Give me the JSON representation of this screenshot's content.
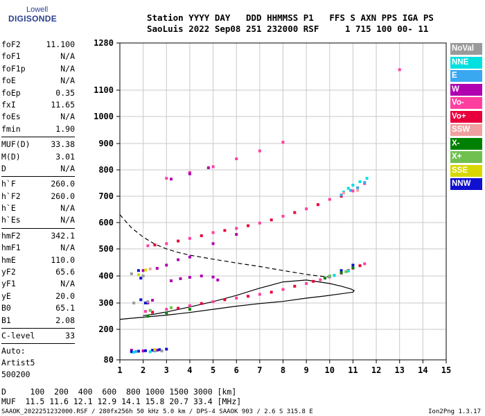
{
  "logo": {
    "line1": "Lowell",
    "line2": "DIGISONDE"
  },
  "header": {
    "line1": "Station YYYY DAY   DDD HHMMSS P1   FFS S AXN PPS IGA PS",
    "line2": "SaoLuis 2022 Sep08 251 232000 RSF     1 715 100 00- 11"
  },
  "params": {
    "group1": [
      {
        "label": "foF2",
        "value": "11.100"
      },
      {
        "label": "foF1",
        "value": "N/A"
      },
      {
        "label": "foF1p",
        "value": "N/A"
      },
      {
        "label": "foE",
        "value": "N/A"
      },
      {
        "label": "foEp",
        "value": "0.35"
      },
      {
        "label": "fxI",
        "value": "11.65"
      },
      {
        "label": "foEs",
        "value": "N/A"
      },
      {
        "label": "fmin",
        "value": "1.90"
      }
    ],
    "group2": [
      {
        "label": "MUF(D)",
        "value": "33.38"
      },
      {
        "label": "M(D)",
        "value": "3.01"
      },
      {
        "label": "D",
        "value": "N/A"
      }
    ],
    "group3": [
      {
        "label": "h`F",
        "value": "260.0"
      },
      {
        "label": "h`F2",
        "value": "260.0"
      },
      {
        "label": "h`E",
        "value": "N/A"
      },
      {
        "label": "h`Es",
        "value": "N/A"
      }
    ],
    "group4": [
      {
        "label": "hmF2",
        "value": "342.1"
      },
      {
        "label": "hmF1",
        "value": "N/A"
      },
      {
        "label": "hmE",
        "value": "110.0"
      },
      {
        "label": "yF2",
        "value": "65.6"
      },
      {
        "label": "yF1",
        "value": "N/A"
      },
      {
        "label": "yE",
        "value": "20.0"
      },
      {
        "label": "B0",
        "value": "65.1"
      },
      {
        "label": "B1",
        "value": "2.08"
      }
    ],
    "clevel": {
      "label": "C-level",
      "value": "33"
    },
    "auto": [
      "Auto:",
      "Artist5",
      "500200"
    ]
  },
  "legend": [
    {
      "label": "NoVal",
      "color": "#9a9a9a"
    },
    {
      "label": "NNE",
      "color": "#00e0e0"
    },
    {
      "label": "E",
      "color": "#3aa8f0"
    },
    {
      "label": "W",
      "color": "#b000b0"
    },
    {
      "label": "Vo-",
      "color": "#ff3fa0"
    },
    {
      "label": "Vo+",
      "color": "#e8003c"
    },
    {
      "label": "SSW",
      "color": "#f0a0a0"
    },
    {
      "label": "X-",
      "color": "#008000"
    },
    {
      "label": "X+",
      "color": "#70c050"
    },
    {
      "label": "SSE",
      "color": "#d8d800"
    },
    {
      "label": "NNW",
      "color": "#1010d0"
    }
  ],
  "footer": {
    "line1": "D     100  200  400  600  800 1000 1500 3000 [km]",
    "line2": "MUF  11.5 11.6 12.1 12.9 14.1 15.8 20.7 33.4 [MHz]",
    "file": "SAAOK_2022251232000.RSF / 280fx256h 50 kHz 5.0 km / DPS-4 SAAOK 903 / 2.6 S 315.8 E",
    "version": "Ion2Png 1.3.17"
  },
  "chart_data": {
    "type": "scatter",
    "title": "",
    "xlabel": "",
    "ylabel": "",
    "xlim": [
      1,
      15
    ],
    "ylim": [
      80,
      1280
    ],
    "x_ticks": [
      1,
      2,
      3,
      4,
      5,
      6,
      7,
      8,
      9,
      10,
      11,
      12,
      13,
      14,
      15
    ],
    "y_ticks": [
      80,
      200,
      300,
      400,
      500,
      600,
      700,
      800,
      900,
      1000,
      1100,
      1280
    ],
    "grid": true,
    "lines": [
      {
        "style": "solid",
        "color": "#000000",
        "x": [
          1.0,
          1.5,
          2.0,
          3.0,
          4.0,
          5.0,
          6.0,
          7.0,
          8.0,
          9.0,
          9.8,
          10.5,
          11.0,
          11.05,
          10.9,
          10.5,
          10.0,
          9.0,
          8.0,
          7.0,
          6.0,
          5.0,
          4.0,
          3.0,
          2.5,
          2.0
        ],
        "y": [
          238,
          242,
          246,
          254,
          264,
          276,
          288,
          298,
          306,
          318,
          326,
          334,
          340,
          346,
          352,
          362,
          372,
          385,
          378,
          355,
          328,
          305,
          285,
          266,
          258,
          252
        ]
      },
      {
        "style": "dashed",
        "color": "#000000",
        "x": [
          1.0,
          1.5,
          2.0,
          2.5,
          3.0,
          3.5,
          4.0,
          5.0,
          6.0,
          7.0,
          8.0,
          9.0,
          9.5,
          10.0
        ],
        "y": [
          630,
          580,
          545,
          518,
          500,
          487,
          477,
          462,
          448,
          435,
          420,
          406,
          400,
          396
        ]
      }
    ],
    "series": [
      {
        "name": "Vo-",
        "color": "#ff3fa0",
        "points": [
          [
            2.1,
            268
          ],
          [
            3,
            276
          ],
          [
            4,
            290
          ],
          [
            5,
            305
          ],
          [
            6,
            318
          ],
          [
            7,
            332
          ],
          [
            8,
            350
          ],
          [
            9,
            372
          ],
          [
            9.6,
            386
          ],
          [
            10,
            396
          ],
          [
            10.5,
            410
          ],
          [
            11,
            428
          ],
          [
            11.5,
            445
          ],
          [
            2.2,
            512
          ],
          [
            3,
            520
          ],
          [
            4,
            540
          ],
          [
            5,
            562
          ],
          [
            6,
            578
          ],
          [
            7,
            598
          ],
          [
            8,
            624
          ],
          [
            9,
            652
          ],
          [
            10,
            688
          ],
          [
            11,
            720
          ],
          [
            11.5,
            748
          ],
          [
            3,
            768
          ],
          [
            4,
            790
          ],
          [
            5,
            812
          ],
          [
            6,
            842
          ],
          [
            7,
            872
          ],
          [
            8,
            905
          ],
          [
            13,
            1178
          ]
        ]
      },
      {
        "name": "Vo+",
        "color": "#e8003c",
        "points": [
          [
            2.4,
            265
          ],
          [
            3.5,
            280
          ],
          [
            4.5,
            298
          ],
          [
            5.5,
            312
          ],
          [
            6.5,
            325
          ],
          [
            7.5,
            340
          ],
          [
            8.5,
            362
          ],
          [
            9.3,
            380
          ],
          [
            10.2,
            402
          ],
          [
            10.8,
            420
          ],
          [
            11.3,
            438
          ],
          [
            2.5,
            515
          ],
          [
            3.5,
            530
          ],
          [
            4.5,
            550
          ],
          [
            5.5,
            570
          ],
          [
            6.5,
            588
          ],
          [
            7.5,
            610
          ],
          [
            8.5,
            638
          ],
          [
            9.5,
            668
          ],
          [
            10.5,
            700
          ]
        ]
      },
      {
        "name": "W",
        "color": "#b000b0",
        "points": [
          [
            3.2,
            382
          ],
          [
            3.6,
            390
          ],
          [
            4,
            395
          ],
          [
            4.5,
            400
          ],
          [
            5,
            396
          ],
          [
            5.2,
            385
          ],
          [
            2.6,
            428
          ],
          [
            3,
            440
          ],
          [
            3.5,
            460
          ],
          [
            4,
            470
          ],
          [
            5,
            520
          ],
          [
            6,
            555
          ],
          [
            3.2,
            765
          ],
          [
            4,
            785
          ],
          [
            4.8,
            808
          ],
          [
            2,
            420
          ],
          [
            1.5,
            118
          ],
          [
            2,
            115
          ],
          [
            2.6,
            118
          ],
          [
            2.2,
            300
          ],
          [
            2.4,
            310
          ]
        ]
      },
      {
        "name": "NNW",
        "color": "#1010d0",
        "points": [
          [
            1.5,
            112
          ],
          [
            1.8,
            114
          ],
          [
            2.1,
            116
          ],
          [
            2.4,
            118
          ],
          [
            2.7,
            120
          ],
          [
            3,
            122
          ],
          [
            1.9,
            312
          ],
          [
            2.1,
            300
          ],
          [
            1.8,
            420
          ],
          [
            1.9,
            392
          ],
          [
            10.5,
            420
          ],
          [
            11,
            440
          ]
        ]
      },
      {
        "name": "NNE",
        "color": "#00e0e0",
        "points": [
          [
            1.6,
            110
          ],
          [
            2.3,
            112
          ],
          [
            10.6,
            716
          ],
          [
            10.8,
            730
          ],
          [
            11,
            742
          ],
          [
            11.3,
            755
          ],
          [
            11.6,
            768
          ],
          [
            10.2,
            402
          ],
          [
            10.8,
            418
          ]
        ]
      },
      {
        "name": "E",
        "color": "#3aa8f0",
        "points": [
          [
            1.7,
            113
          ],
          [
            2.5,
            115
          ],
          [
            10.5,
            705
          ],
          [
            10.9,
            722
          ],
          [
            11.2,
            732
          ],
          [
            11.5,
            752
          ],
          [
            10,
            398
          ]
        ]
      },
      {
        "name": "X-",
        "color": "#008000",
        "points": [
          [
            2.2,
            250
          ],
          [
            3,
            262
          ],
          [
            4,
            276
          ],
          [
            9.8,
            392
          ],
          [
            10.5,
            412
          ],
          [
            11,
            430
          ]
        ]
      },
      {
        "name": "X+",
        "color": "#70c050",
        "points": [
          [
            2.3,
            272
          ],
          [
            3.2,
            282
          ],
          [
            10,
            400
          ],
          [
            10.7,
            416
          ]
        ]
      },
      {
        "name": "SSE",
        "color": "#d8d800",
        "points": [
          [
            2.1,
            422
          ],
          [
            2.5,
            120
          ],
          [
            1.8,
            404
          ]
        ]
      },
      {
        "name": "SSW",
        "color": "#f0a0a0",
        "points": [
          [
            2.3,
            426
          ],
          [
            10.6,
            712
          ],
          [
            11.2,
            722
          ]
        ]
      },
      {
        "name": "NoVal",
        "color": "#9a9a9a",
        "points": [
          [
            1.5,
            408
          ],
          [
            2,
            400
          ],
          [
            1.6,
            300
          ],
          [
            2.2,
            305
          ],
          [
            2.8,
            115
          ]
        ]
      }
    ]
  }
}
